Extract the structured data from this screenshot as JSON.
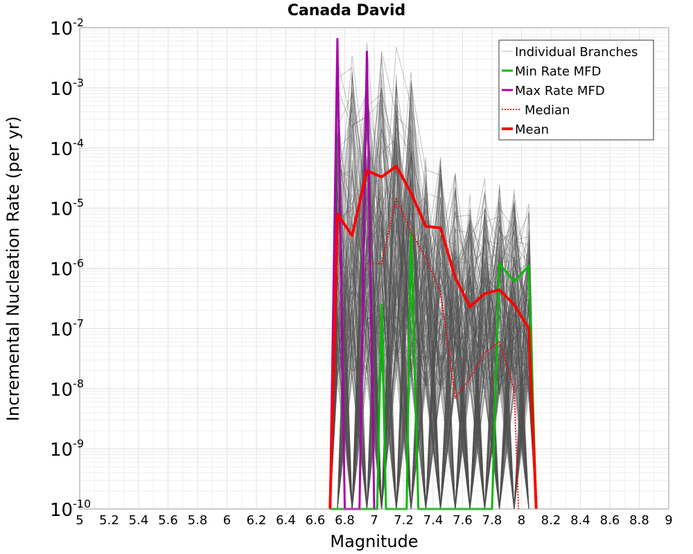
{
  "chart_data": {
    "type": "line",
    "title": "Canada David",
    "xlabel": "Magnitude",
    "ylabel": "Incremental Nucleation Rate (per yr)",
    "xlim": [
      5,
      9
    ],
    "ylim": [
      1e-10,
      0.01
    ],
    "yscale": "log",
    "grid": true,
    "legend_position": "top-right",
    "x_ticks": [
      "5",
      "5.2",
      "5.4",
      "5.6",
      "5.8",
      "6",
      "6.2",
      "6.4",
      "6.6",
      "6.8",
      "7",
      "7.2",
      "7.4",
      "7.6",
      "7.8",
      "8",
      "8.2",
      "8.4",
      "8.6",
      "8.8",
      "9"
    ],
    "y_ticks": [
      {
        "base": "10",
        "exp": "-2"
      },
      {
        "base": "10",
        "exp": "-3"
      },
      {
        "base": "10",
        "exp": "-4"
      },
      {
        "base": "10",
        "exp": "-5"
      },
      {
        "base": "10",
        "exp": "-6"
      },
      {
        "base": "10",
        "exp": "-7"
      },
      {
        "base": "10",
        "exp": "-8"
      },
      {
        "base": "10",
        "exp": "-9"
      },
      {
        "base": "10",
        "exp": "-10"
      }
    ],
    "branch_bins": [
      6.75,
      6.85,
      6.95,
      7.05,
      7.15,
      7.25,
      7.35,
      7.45,
      7.55,
      7.65,
      7.75,
      7.85,
      7.95,
      8.05
    ],
    "branch_upper_envelope": [
      0.0065,
      0.0045,
      0.007,
      0.006,
      0.0065,
      0.002,
      0.0001,
      0.0001,
      6e-05,
      4e-05,
      3.5e-05,
      3e-05,
      2.5e-05,
      1.5e-05
    ],
    "series": [
      {
        "name": "Individual Branches",
        "color": "#bbbbbb",
        "style": "thin"
      },
      {
        "name": "Min Rate MFD",
        "color": "#00bb00",
        "style": "solid",
        "x": [
          6.7,
          6.95,
          7.0,
          7.02,
          7.05,
          7.08,
          7.22,
          7.25,
          7.3,
          7.8,
          7.85,
          7.95,
          8.05,
          8.1
        ],
        "y": [
          1e-10,
          1e-10,
          1e-10,
          1e-10,
          2.5e-07,
          1e-10,
          1e-10,
          4e-06,
          1e-10,
          1e-10,
          1.2e-06,
          6e-07,
          1.1e-06,
          1e-10
        ]
      },
      {
        "name": "Max Rate MFD",
        "color": "#aa00aa",
        "style": "solid",
        "x": [
          6.7,
          6.75,
          6.8,
          6.9,
          6.95,
          7.0
        ],
        "y": [
          1e-10,
          0.0065,
          1e-10,
          1e-10,
          0.004,
          1e-10
        ]
      },
      {
        "name": "Median",
        "color": "#ff0000",
        "style": "dotted",
        "x": [
          6.95,
          7.05,
          7.15,
          7.25,
          7.35,
          7.45,
          7.55,
          7.65,
          7.75,
          7.85,
          7.95,
          7.98
        ],
        "y": [
          1.2e-06,
          1.2e-06,
          1.5e-05,
          4e-06,
          1.5e-06,
          4e-07,
          7e-09,
          1.5e-08,
          4e-08,
          6e-08,
          1e-08,
          1e-10
        ]
      },
      {
        "name": "Mean",
        "color": "#ff0000",
        "style": "thick",
        "x": [
          6.7,
          6.75,
          6.85,
          6.95,
          7.05,
          7.15,
          7.25,
          7.35,
          7.45,
          7.55,
          7.65,
          7.75,
          7.85,
          7.95,
          8.05,
          8.1
        ],
        "y": [
          1e-10,
          8e-06,
          3.5e-06,
          4.2e-05,
          3.3e-05,
          5e-05,
          1.8e-05,
          5e-06,
          4.7e-06,
          7e-07,
          2.3e-07,
          3.8e-07,
          4.4e-07,
          2.5e-07,
          1e-07,
          1e-10
        ]
      }
    ]
  }
}
